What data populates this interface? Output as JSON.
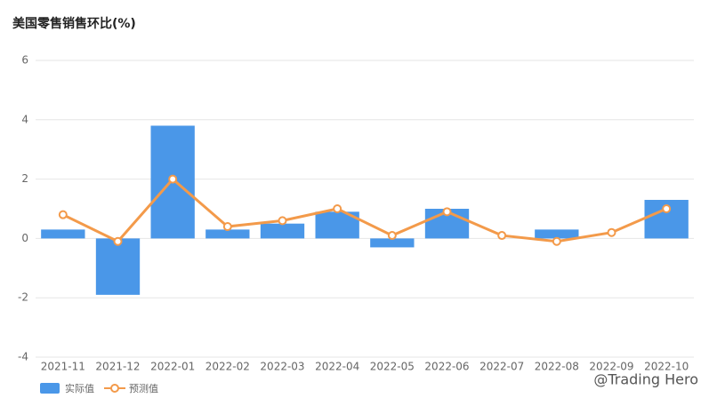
{
  "chart_data": {
    "type": "combo",
    "title": "美国零售销售环比(%)",
    "categories": [
      "2021-11",
      "2021-12",
      "2022-01",
      "2022-02",
      "2022-03",
      "2022-04",
      "2022-05",
      "2022-06",
      "2022-07",
      "2022-08",
      "2022-09",
      "2022-10"
    ],
    "series": [
      {
        "name": "实际值",
        "type": "bar",
        "color": "#4a97e8",
        "values": [
          0.3,
          -1.9,
          3.8,
          0.3,
          0.5,
          0.9,
          -0.3,
          1.0,
          0,
          0.3,
          0,
          1.3
        ]
      },
      {
        "name": "预测值",
        "type": "line",
        "color": "#f39a4a",
        "values": [
          0.8,
          -0.1,
          2.0,
          0.4,
          0.6,
          1.0,
          0.1,
          0.9,
          0.1,
          -0.1,
          0.2,
          1.0
        ]
      }
    ],
    "ylim": [
      -4,
      6
    ],
    "yticks": [
      -4,
      -2,
      0,
      2,
      4,
      6
    ],
    "grid": true,
    "watermark": "@Trading Hero"
  }
}
